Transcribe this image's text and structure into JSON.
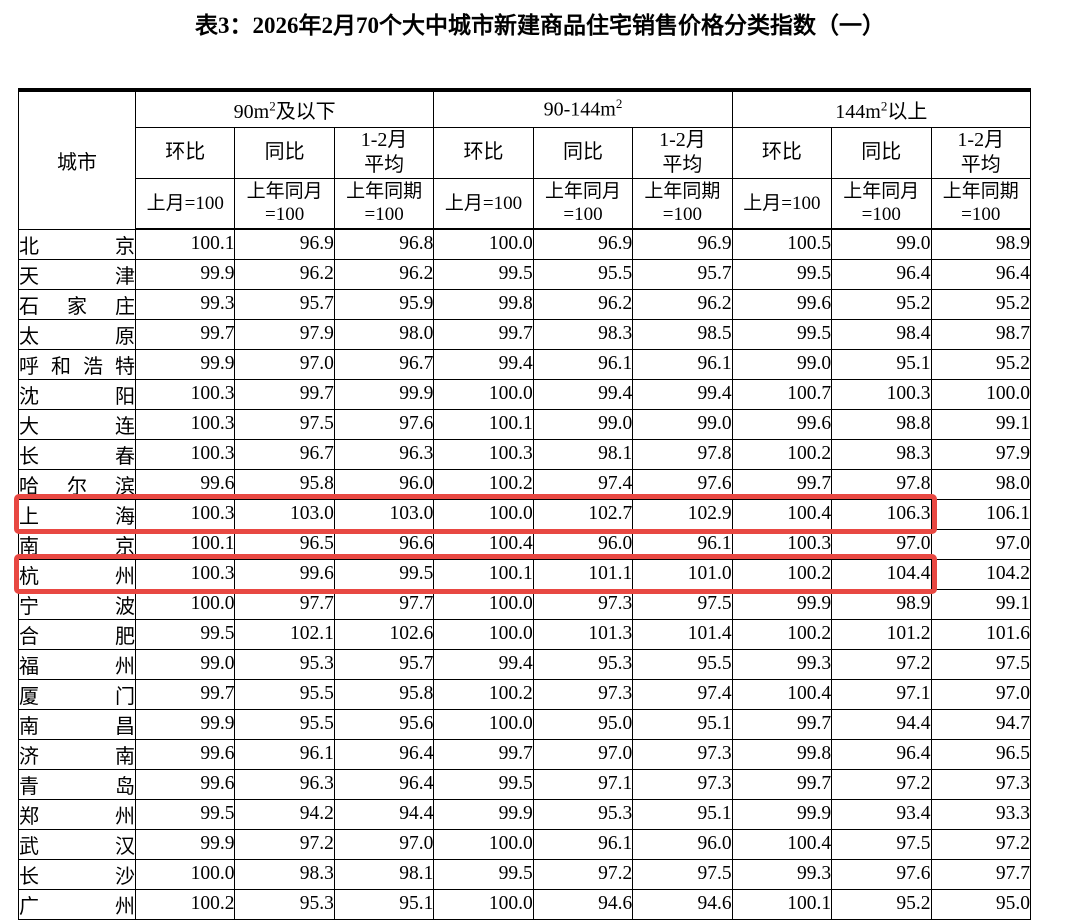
{
  "page": {
    "title": "表3：2026年2月70个大中城市新建商品住宅销售价格分类指数（一）"
  },
  "table": {
    "corner_header": "城市",
    "groups": [
      {
        "base": "90m",
        "sup": "2",
        "suffix": "及以下"
      },
      {
        "base": "90-144m",
        "sup": "2",
        "suffix": ""
      },
      {
        "base": "144m",
        "sup": "2",
        "suffix": "以上"
      }
    ],
    "metric_headers": [
      {
        "line1": "环比",
        "line2": ""
      },
      {
        "line1": "同比",
        "line2": ""
      },
      {
        "line1": "1-2月",
        "line2": "平均"
      }
    ],
    "base_headers": [
      {
        "line1": "上月=100",
        "line2": ""
      },
      {
        "line1": "上年同月",
        "line2": "=100"
      },
      {
        "line1": "上年同期",
        "line2": "=100"
      }
    ],
    "rows": [
      {
        "city": "北京",
        "values": [
          "100.1",
          "96.9",
          "96.8",
          "100.0",
          "96.9",
          "96.9",
          "100.5",
          "99.0",
          "98.9"
        ]
      },
      {
        "city": "天津",
        "values": [
          "99.9",
          "96.2",
          "96.2",
          "99.5",
          "95.5",
          "95.7",
          "99.5",
          "96.4",
          "96.4"
        ]
      },
      {
        "city": "石家庄",
        "values": [
          "99.3",
          "95.7",
          "95.9",
          "99.8",
          "96.2",
          "96.2",
          "99.6",
          "95.2",
          "95.2"
        ]
      },
      {
        "city": "太原",
        "values": [
          "99.7",
          "97.9",
          "98.0",
          "99.7",
          "98.3",
          "98.5",
          "99.5",
          "98.4",
          "98.7"
        ]
      },
      {
        "city": "呼和浩特",
        "values": [
          "99.9",
          "97.0",
          "96.7",
          "99.4",
          "96.1",
          "96.1",
          "99.0",
          "95.1",
          "95.2"
        ]
      },
      {
        "city": "沈阳",
        "values": [
          "100.3",
          "99.7",
          "99.9",
          "100.0",
          "99.4",
          "99.4",
          "100.7",
          "100.3",
          "100.0"
        ]
      },
      {
        "city": "大连",
        "values": [
          "100.3",
          "97.5",
          "97.6",
          "100.1",
          "99.0",
          "99.0",
          "99.6",
          "98.8",
          "99.1"
        ]
      },
      {
        "city": "长春",
        "values": [
          "100.3",
          "96.7",
          "96.3",
          "100.3",
          "98.1",
          "97.8",
          "100.2",
          "98.3",
          "97.9"
        ]
      },
      {
        "city": "哈尔滨",
        "values": [
          "99.6",
          "95.8",
          "96.0",
          "100.2",
          "97.4",
          "97.6",
          "99.7",
          "97.8",
          "98.0"
        ]
      },
      {
        "city": "上海",
        "values": [
          "100.3",
          "103.0",
          "103.0",
          "100.0",
          "102.7",
          "102.9",
          "100.4",
          "106.3",
          "106.1"
        ]
      },
      {
        "city": "南京",
        "values": [
          "100.1",
          "96.5",
          "96.6",
          "100.4",
          "96.0",
          "96.1",
          "100.3",
          "97.0",
          "97.0"
        ]
      },
      {
        "city": "杭州",
        "values": [
          "100.3",
          "99.6",
          "99.5",
          "100.1",
          "101.1",
          "101.0",
          "100.2",
          "104.4",
          "104.2"
        ]
      },
      {
        "city": "宁波",
        "values": [
          "100.0",
          "97.7",
          "97.7",
          "100.0",
          "97.3",
          "97.5",
          "99.9",
          "98.9",
          "99.1"
        ]
      },
      {
        "city": "合肥",
        "values": [
          "99.5",
          "102.1",
          "102.6",
          "100.0",
          "101.3",
          "101.4",
          "100.2",
          "101.2",
          "101.6"
        ]
      },
      {
        "city": "福州",
        "values": [
          "99.0",
          "95.3",
          "95.7",
          "99.4",
          "95.3",
          "95.5",
          "99.3",
          "97.2",
          "97.5"
        ]
      },
      {
        "city": "厦门",
        "values": [
          "99.7",
          "95.5",
          "95.8",
          "100.2",
          "97.3",
          "97.4",
          "100.4",
          "97.1",
          "97.0"
        ]
      },
      {
        "city": "南昌",
        "values": [
          "99.9",
          "95.5",
          "95.6",
          "100.0",
          "95.0",
          "95.1",
          "99.7",
          "94.4",
          "94.7"
        ]
      },
      {
        "city": "济南",
        "values": [
          "99.6",
          "96.1",
          "96.4",
          "99.7",
          "97.0",
          "97.3",
          "99.8",
          "96.4",
          "96.5"
        ]
      },
      {
        "city": "青岛",
        "values": [
          "99.6",
          "96.3",
          "96.4",
          "99.5",
          "97.1",
          "97.3",
          "99.7",
          "97.2",
          "97.3"
        ]
      },
      {
        "city": "郑州",
        "values": [
          "99.5",
          "94.2",
          "94.4",
          "99.9",
          "95.3",
          "95.1",
          "99.9",
          "93.4",
          "93.3"
        ]
      },
      {
        "city": "武汉",
        "values": [
          "99.9",
          "97.2",
          "97.0",
          "100.0",
          "96.1",
          "96.0",
          "100.4",
          "97.5",
          "97.2"
        ]
      },
      {
        "city": "长沙",
        "values": [
          "100.0",
          "98.3",
          "98.1",
          "99.5",
          "97.2",
          "97.5",
          "99.3",
          "97.6",
          "97.7"
        ]
      },
      {
        "city": "广州",
        "values": [
          "100.2",
          "95.3",
          "95.1",
          "100.0",
          "94.6",
          "94.6",
          "100.1",
          "95.2",
          "95.0"
        ]
      }
    ],
    "highlights": [
      {
        "id": "shanghai",
        "city": "上海",
        "row_index": 9,
        "through_cell": 8
      },
      {
        "id": "hangzhou",
        "city": "杭州",
        "row_index": 11,
        "through_cell": 8
      }
    ],
    "highlight_color": "#e84842"
  }
}
